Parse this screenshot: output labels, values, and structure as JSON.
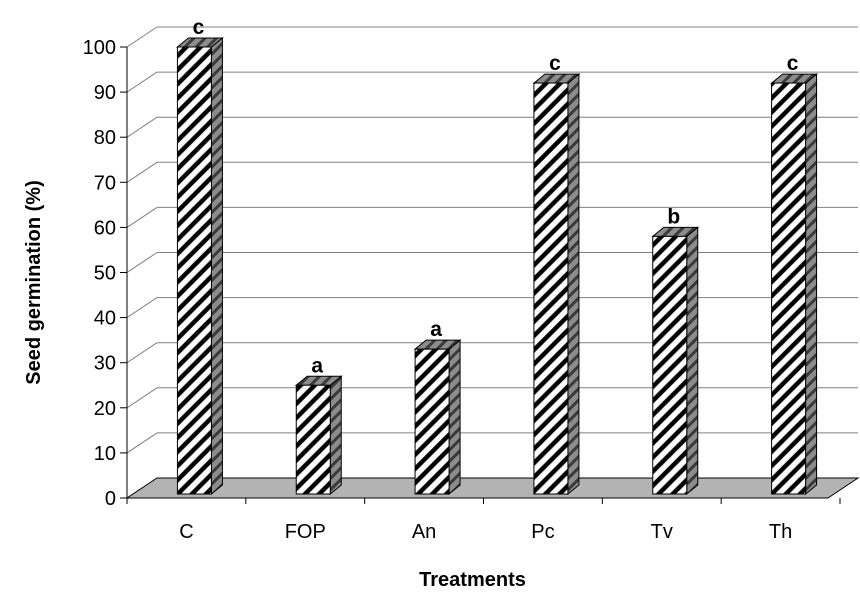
{
  "chart_data": {
    "type": "bar",
    "categories": [
      "C",
      "FOP",
      "An",
      "Pc",
      "Tv",
      "Th"
    ],
    "values": [
      100,
      25,
      33,
      92,
      58,
      92
    ],
    "annotations": [
      "c",
      "a",
      "a",
      "c",
      "b",
      "c"
    ],
    "xlabel": "Treatments",
    "ylabel": "Seed germination (%)",
    "ylim": [
      0,
      100
    ],
    "yticks": [
      0,
      10,
      20,
      30,
      40,
      50,
      60,
      70,
      80,
      90,
      100
    ],
    "grid": true,
    "legend": "none",
    "style": "3d-bar-hatched",
    "colors": {
      "bar_face": "#ffffff",
      "hatch": "#000000",
      "bar_side": "#808080",
      "floor": "#b3b3b3",
      "grid": "#808080"
    }
  }
}
